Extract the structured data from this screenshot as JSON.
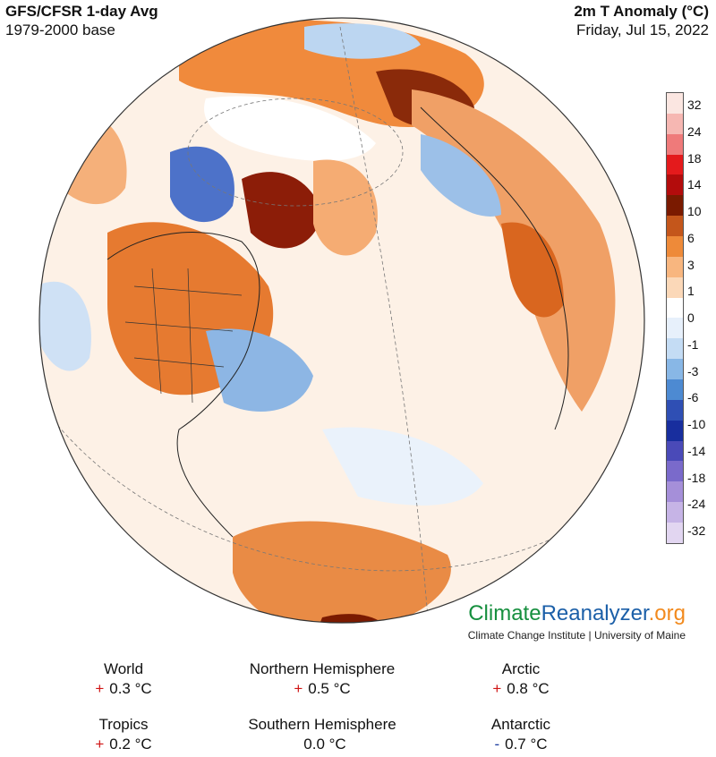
{
  "header": {
    "title": "GFS/CFSR 1-day Avg",
    "baseline": "1979-2000 base",
    "variable": "2m T Anomaly (°C)",
    "date": "Friday, Jul 15, 2022"
  },
  "legend": {
    "labels": [
      "32",
      "24",
      "18",
      "14",
      "10",
      "6",
      "3",
      "1",
      "0",
      "-1",
      "-3",
      "-6",
      "-10",
      "-14",
      "-18",
      "-24",
      "-32"
    ],
    "colors": [
      "#fbe6e1",
      "#f6b7b2",
      "#ef7a7a",
      "#e41a1c",
      "#b30c0c",
      "#7a1a00",
      "#c4561b",
      "#ee8a39",
      "#f8b67f",
      "#fbd8b8",
      "#ffffff",
      "#e7f0fb",
      "#c4dcf4",
      "#88b7e6",
      "#4d8ad2",
      "#2f4fb4",
      "#182e9e",
      "#4a4ab8",
      "#7a6acb",
      "#a58fd9",
      "#c6b4e6",
      "#e2d6f1"
    ]
  },
  "brand": {
    "main_a": "Climate",
    "main_b": "Reanalyzer",
    "main_c": ".org",
    "sub": "Climate Change Institute | University of Maine"
  },
  "stats": [
    {
      "region": "World",
      "sign": "+",
      "value": "0.3 °C"
    },
    {
      "region": "Northern Hemisphere",
      "sign": "+",
      "value": "0.5 °C"
    },
    {
      "region": "Arctic",
      "sign": "+",
      "value": "0.8 °C"
    },
    {
      "region": "Tropics",
      "sign": "+",
      "value": "0.2 °C"
    },
    {
      "region": "Southern Hemisphere",
      "sign": "",
      "value": "0.0 °C"
    },
    {
      "region": "Antarctic",
      "sign": "-",
      "value": "0.7 °C"
    }
  ]
}
